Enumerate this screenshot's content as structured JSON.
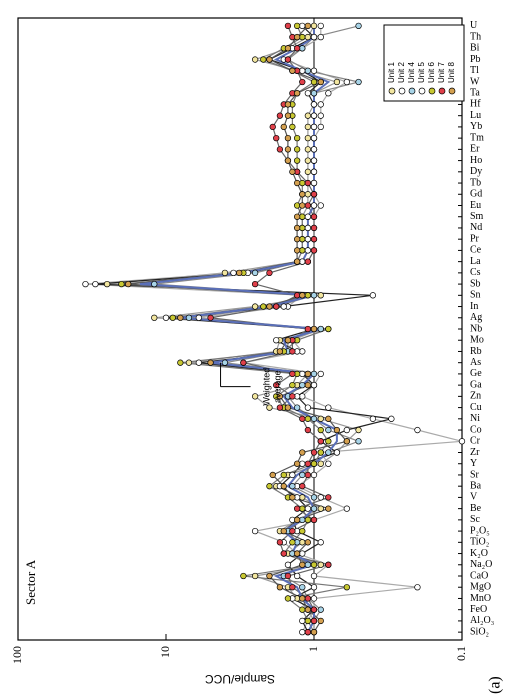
{
  "chart_data": {
    "type": "line",
    "title": "Sector A",
    "panel_label": "(a)",
    "ylabel": "Sample/UCC",
    "log_y": true,
    "ylim": [
      0.1,
      100
    ],
    "yticks": [
      0.1,
      1,
      10,
      100
    ],
    "reference_line": 1,
    "annotation": "Weighted average",
    "legend_position": "upper right",
    "categories": [
      "SiO₂",
      "Al₂O₃",
      "FeO",
      "MnO",
      "MgO",
      "CaO",
      "Na₂O",
      "K₂O",
      "TiO₂",
      "P₂O₅",
      "Sc",
      "Be",
      "V",
      "Ba",
      "Sr",
      "Y",
      "Zr",
      "Cr",
      "Co",
      "Ni",
      "Cu",
      "Zn",
      "Ga",
      "Ge",
      "As",
      "Rb",
      "Mo",
      "Nb",
      "Ag",
      "In",
      "Sn",
      "Sb",
      "Cs",
      "La",
      "Ce",
      "Pr",
      "Nd",
      "Sm",
      "Eu",
      "Gd",
      "Tb",
      "Dy",
      "Ho",
      "Er",
      "Tm",
      "Yb",
      "Lu",
      "Hf",
      "Ta",
      "W",
      "Tl",
      "Pb",
      "Bi",
      "Th",
      "U"
    ],
    "series": [
      {
        "name": "Unit 1",
        "color": "#f2e6a0",
        "line_color": "#999999",
        "values": [
          1.1,
          1.0,
          1.1,
          1.3,
          1.5,
          2.5,
          0.9,
          1.5,
          1.2,
          1.7,
          1.3,
          0.9,
          1.2,
          1.8,
          1.5,
          0.9,
          0.7,
          0.6,
          0.5,
          0.9,
          2.0,
          2.5,
          1.3,
          1.1,
          7,
          1.8,
          1.7,
          0.8,
          12,
          2.5,
          0.9,
          25,
          4,
          1.3,
          1.2,
          1.2,
          1.2,
          1.2,
          1.1,
          1.1,
          1.1,
          1.1,
          1.1,
          1.1,
          1.1,
          1.1,
          1.1,
          1.0,
          1.0,
          0.7,
          1.3,
          2.5,
          1.5,
          1.1,
          1.0
        ]
      },
      {
        "name": "Unit 2",
        "color": "#ffffff",
        "line_color": "#aaaaaa",
        "values": [
          1.2,
          1.1,
          1.0,
          1.0,
          0.2,
          1.0,
          0.8,
          1.3,
          1.6,
          2.5,
          1.0,
          0.6,
          0.9,
          1.3,
          1.0,
          0.8,
          0.9,
          0.1,
          0.2,
          0.4,
          0.8,
          1.2,
          1.0,
          0.9,
          3,
          1.2,
          1.4,
          0.9,
          6,
          1.5,
          1.2,
          35,
          3.5,
          1.1,
          1.0,
          1.0,
          1.0,
          1.0,
          0.9,
          1.0,
          1.0,
          1.0,
          1.0,
          1.0,
          1.0,
          0.9,
          0.9,
          0.9,
          0.8,
          0.6,
          1.0,
          1.6,
          1.2,
          0.9,
          0.9
        ]
      },
      {
        "name": "Unit 4",
        "color": "#a8d4e8",
        "line_color": "#888888",
        "values": [
          1.0,
          1.0,
          0.9,
          1.1,
          1.2,
          1.6,
          1.1,
          1.4,
          1.3,
          1.5,
          1.2,
          1.0,
          1.0,
          1.4,
          1.2,
          1.0,
          0.8,
          0.5,
          0.8,
          1.0,
          1.3,
          1.5,
          1.2,
          1.0,
          4,
          1.5,
          1.5,
          0.9,
          7,
          1.8,
          1.0,
          12,
          2.5,
          1.2,
          1.1,
          1.1,
          1.1,
          1.1,
          1.0,
          1.0,
          1.0,
          1.0,
          1.0,
          1.0,
          1.0,
          1.0,
          1.0,
          1.0,
          1.0,
          0.5,
          1.1,
          1.5,
          1.2,
          1.0,
          0.5
        ]
      },
      {
        "name": "Unit 5",
        "color": "#ffffff",
        "line_color": "#222222",
        "values": [
          1.1,
          1.2,
          1.0,
          1.4,
          1.0,
          1.3,
          1.5,
          1.2,
          0.9,
          1.3,
          1.4,
          1.1,
          1.3,
          1.7,
          1.4,
          1.2,
          0.7,
          0.9,
          0.6,
          0.3,
          1.1,
          1.3,
          1.0,
          1.2,
          6,
          1.3,
          1.8,
          1.0,
          10,
          1.6,
          0.4,
          30,
          2.8,
          1.2,
          1.1,
          1.1,
          1.1,
          1.1,
          1.0,
          1.0,
          1.0,
          1.0,
          1.0,
          1.0,
          1.0,
          1.0,
          1.0,
          1.0,
          1.1,
          0.9,
          1.2,
          2.0,
          1.4,
          1.0,
          1.2
        ]
      },
      {
        "name": "Unit 6",
        "color": "#c8c832",
        "line_color": "#777777",
        "values": [
          1.0,
          1.1,
          1.2,
          1.5,
          0.6,
          3.0,
          1.0,
          1.6,
          1.4,
          1.2,
          1.1,
          1.2,
          1.5,
          2.0,
          1.6,
          1.0,
          0.9,
          0.8,
          0.9,
          1.1,
          1.6,
          1.8,
          1.4,
          1.3,
          8,
          1.6,
          1.3,
          0.8,
          9,
          2.2,
          1.1,
          20,
          3,
          1.3,
          1.2,
          1.2,
          1.2,
          1.2,
          1.3,
          1.2,
          1.2,
          1.3,
          1.3,
          1.3,
          1.3,
          1.4,
          1.4,
          1.4,
          1.3,
          1.0,
          1.4,
          2.2,
          1.6,
          1.2,
          1.3
        ]
      },
      {
        "name": "Unit 7",
        "color": "#e0404a",
        "line_color": "#666666",
        "values": [
          1.1,
          1.0,
          1.0,
          1.1,
          1.4,
          1.5,
          0.8,
          1.6,
          1.7,
          1.4,
          1.0,
          1.3,
          0.8,
          1.2,
          1.1,
          1.1,
          1.0,
          0.9,
          1.1,
          1.2,
          1.7,
          1.4,
          1.8,
          1.4,
          3,
          1.4,
          1.4,
          1.1,
          5,
          1.8,
          1.3,
          2.5,
          2,
          1.1,
          1.0,
          1.0,
          1.0,
          1.0,
          1.1,
          1.0,
          1.1,
          1.3,
          1.5,
          1.7,
          1.8,
          1.9,
          1.7,
          1.6,
          1.4,
          1.2,
          1.3,
          1.5,
          1.3,
          1.4,
          1.5
        ]
      },
      {
        "name": "Unit 8",
        "color": "#d4a050",
        "line_color": "#555555",
        "values": [
          1.0,
          0.9,
          1.1,
          1.2,
          1.7,
          2.0,
          1.2,
          1.3,
          1.1,
          1.6,
          1.3,
          0.8,
          1.4,
          1.6,
          1.9,
          1.3,
          1.2,
          0.6,
          0.7,
          0.8,
          1.5,
          1.7,
          1.1,
          1.1,
          5,
          1.7,
          1.5,
          1.0,
          8,
          2.0,
          1.2,
          18,
          3.2,
          1.3,
          1.3,
          1.3,
          1.3,
          1.3,
          1.2,
          1.2,
          1.3,
          1.4,
          1.5,
          1.5,
          1.5,
          1.6,
          1.5,
          1.5,
          1.3,
          0.9,
          1.4,
          2.0,
          1.5,
          1.3,
          1.1
        ]
      }
    ],
    "average": {
      "color": "#5a6fb8",
      "values": [
        1.1,
        1.0,
        1.0,
        1.2,
        1.3,
        1.8,
        1.0,
        1.4,
        1.3,
        1.6,
        1.2,
        1.0,
        1.1,
        1.5,
        1.3,
        1.0,
        0.8,
        0.7,
        0.7,
        1.0,
        1.4,
        1.6,
        1.2,
        1.0,
        5,
        1.5,
        1.6,
        0.9,
        8,
        2.0,
        1.0,
        15,
        3,
        1.2,
        1.1,
        1.1,
        1.1,
        1.1,
        1.0,
        1.0,
        1.0,
        1.0,
        1.0,
        1.0,
        1.0,
        1.0,
        1.0,
        1.0,
        1.0,
        0.8,
        1.2,
        1.8,
        1.3,
        1.0,
        1.0
      ]
    }
  }
}
